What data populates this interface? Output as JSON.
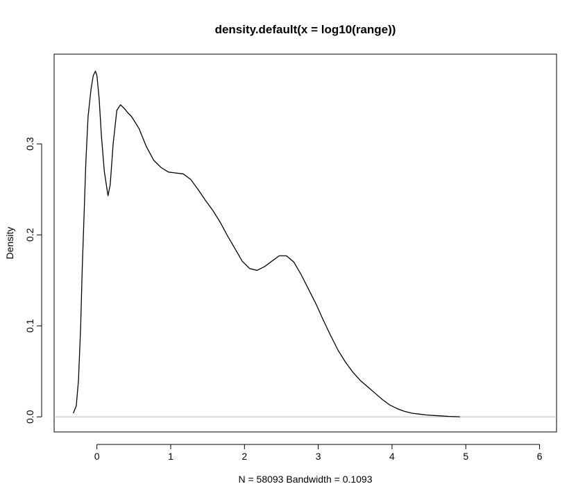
{
  "chart_data": {
    "type": "line",
    "title": "density.default(x = log10(range))",
    "xlabel": "N = 58093   Bandwidth = 0.1093",
    "ylabel": "Density",
    "xlim": [
      -0.58,
      6.23
    ],
    "ylim": [
      -0.0166,
      0.3986
    ],
    "x_ticks": [
      "0",
      "1",
      "2",
      "3",
      "4",
      "5",
      "6"
    ],
    "y_ticks": [
      "0.0",
      "0.1",
      "0.2",
      "0.3"
    ],
    "baseline": 0.0,
    "baseline_color": "#bebebe",
    "series": [
      {
        "color": "#000000",
        "x": [
          -0.32,
          -0.28,
          -0.25,
          -0.22,
          -0.2,
          -0.15,
          -0.12,
          -0.08,
          -0.05,
          -0.02,
          0.0,
          0.03,
          0.06,
          0.1,
          0.15,
          0.18,
          0.22,
          0.27,
          0.32,
          0.37,
          0.42,
          0.47,
          0.57,
          0.67,
          0.77,
          0.87,
          0.97,
          1.07,
          1.17,
          1.27,
          1.37,
          1.47,
          1.57,
          1.67,
          1.77,
          1.87,
          1.97,
          2.07,
          2.17,
          2.27,
          2.37,
          2.47,
          2.57,
          2.67,
          2.77,
          2.87,
          2.97,
          3.07,
          3.17,
          3.27,
          3.37,
          3.47,
          3.57,
          3.67,
          3.77,
          3.87,
          3.97,
          4.07,
          4.17,
          4.27,
          4.37,
          4.47,
          4.57,
          4.67,
          4.77,
          4.87,
          4.92
        ],
        "y": [
          0.004,
          0.012,
          0.04,
          0.1,
          0.16,
          0.28,
          0.33,
          0.36,
          0.375,
          0.38,
          0.375,
          0.35,
          0.31,
          0.27,
          0.243,
          0.255,
          0.3,
          0.337,
          0.343,
          0.339,
          0.334,
          0.33,
          0.317,
          0.297,
          0.282,
          0.274,
          0.269,
          0.268,
          0.267,
          0.261,
          0.25,
          0.238,
          0.227,
          0.214,
          0.199,
          0.185,
          0.171,
          0.163,
          0.161,
          0.165,
          0.171,
          0.177,
          0.177,
          0.17,
          0.156,
          0.14,
          0.124,
          0.106,
          0.089,
          0.073,
          0.06,
          0.049,
          0.04,
          0.033,
          0.026,
          0.019,
          0.013,
          0.009,
          0.006,
          0.004,
          0.003,
          0.002,
          0.0015,
          0.001,
          0.0005,
          0.0002,
          0.0
        ]
      }
    ]
  }
}
